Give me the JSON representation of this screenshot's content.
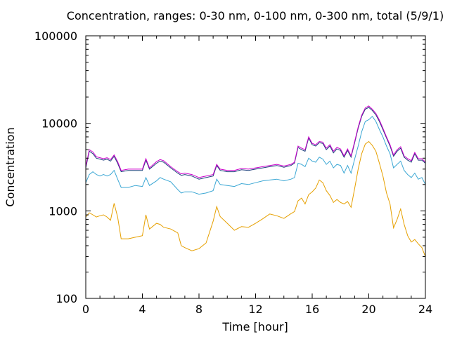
{
  "chart_data": {
    "type": "line",
    "title": "Concentration, ranges: 0-30 nm, 0-100 nm, 0-300 nm, total (5/9/1)",
    "xlabel": "Time [hour]",
    "ylabel": "Concentration",
    "xlim": [
      0,
      24
    ],
    "ylim": [
      100,
      100000
    ],
    "yscale": "log",
    "grid": false,
    "x_ticks": [
      0,
      4,
      8,
      12,
      16,
      20,
      24
    ],
    "x_tick_labels": [
      "0",
      "4",
      "8",
      "12",
      "16",
      "20",
      "24"
    ],
    "y_ticks": [
      100,
      1000,
      10000,
      100000
    ],
    "y_tick_labels": [
      "100",
      "1000",
      "10000",
      "100000"
    ],
    "x": [
      0,
      0.25,
      0.5,
      0.75,
      1,
      1.25,
      1.5,
      1.75,
      2,
      2.25,
      2.5,
      3,
      3.5,
      4,
      4.25,
      4.5,
      5,
      5.25,
      5.5,
      6,
      6.5,
      6.75,
      7,
      7.5,
      8,
      8.5,
      9,
      9.25,
      9.5,
      10,
      10.5,
      11,
      11.5,
      12,
      12.5,
      13,
      13.5,
      14,
      14.5,
      14.75,
      15,
      15.25,
      15.5,
      15.75,
      16,
      16.25,
      16.5,
      16.75,
      17,
      17.25,
      17.5,
      17.75,
      18,
      18.25,
      18.5,
      18.75,
      19,
      19.25,
      19.5,
      19.75,
      20,
      20.25,
      20.5,
      20.75,
      21,
      21.25,
      21.5,
      21.75,
      22,
      22.25,
      22.5,
      22.75,
      23,
      23.25,
      23.5,
      23.75,
      24
    ],
    "series": [
      {
        "color": "#e6a000",
        "values": [
          850,
          950,
          900,
          850,
          880,
          900,
          850,
          780,
          1220,
          850,
          480,
          480,
          500,
          520,
          900,
          620,
          720,
          700,
          650,
          620,
          560,
          400,
          380,
          350,
          370,
          430,
          760,
          1120,
          860,
          720,
          600,
          660,
          650,
          720,
          810,
          920,
          880,
          820,
          930,
          980,
          1300,
          1400,
          1200,
          1530,
          1650,
          1820,
          2250,
          2100,
          1700,
          1500,
          1250,
          1350,
          1250,
          1200,
          1280,
          1100,
          1800,
          3000,
          4500,
          5800,
          6200,
          5600,
          4800,
          3500,
          2500,
          1600,
          1200,
          640,
          800,
          1050,
          700,
          520,
          440,
          470,
          420,
          380,
          300
        ]
      },
      {
        "color": "#3ba7d4",
        "values": [
          2100,
          2600,
          2800,
          2600,
          2500,
          2600,
          2500,
          2600,
          2900,
          2300,
          1850,
          1850,
          1950,
          1900,
          2400,
          1950,
          2200,
          2400,
          2300,
          2150,
          1750,
          1600,
          1650,
          1650,
          1550,
          1600,
          1700,
          2300,
          2000,
          1950,
          1900,
          2050,
          2000,
          2100,
          2200,
          2250,
          2300,
          2200,
          2300,
          2400,
          3500,
          3400,
          3200,
          4000,
          3700,
          3600,
          4100,
          3900,
          3400,
          3700,
          3100,
          3400,
          3300,
          2700,
          3300,
          2700,
          3900,
          5500,
          8000,
          10500,
          11000,
          12000,
          10500,
          8500,
          7000,
          5500,
          4500,
          3100,
          3400,
          3700,
          2900,
          2600,
          2400,
          2700,
          2300,
          2400,
          2000
        ]
      },
      {
        "color": "#1c3e7c",
        "values": [
          3100,
          4800,
          4500,
          4000,
          3900,
          3800,
          3900,
          3700,
          4200,
          3500,
          2800,
          2900,
          2900,
          2900,
          3800,
          3000,
          3500,
          3700,
          3600,
          3100,
          2700,
          2550,
          2600,
          2500,
          2300,
          2400,
          2500,
          3300,
          2900,
          2800,
          2800,
          2950,
          2900,
          3000,
          3100,
          3200,
          3300,
          3150,
          3300,
          3500,
          5300,
          5000,
          4800,
          6800,
          5700,
          5500,
          6000,
          5900,
          5000,
          5500,
          4600,
          5100,
          4900,
          4100,
          4900,
          4100,
          6000,
          8800,
          12000,
          14500,
          15200,
          14000,
          12500,
          10500,
          8500,
          6800,
          5500,
          4200,
          4800,
          5200,
          4100,
          3800,
          3600,
          4500,
          3800,
          3800,
          3500
        ]
      },
      {
        "color": "#cc00cc",
        "values": [
          3200,
          5000,
          4700,
          4150,
          4050,
          3950,
          4050,
          3850,
          4350,
          3650,
          2900,
          3000,
          3000,
          3000,
          3950,
          3100,
          3650,
          3850,
          3750,
          3200,
          2800,
          2650,
          2700,
          2600,
          2400,
          2500,
          2600,
          3400,
          3000,
          2900,
          2900,
          3050,
          3000,
          3100,
          3200,
          3300,
          3400,
          3250,
          3400,
          3600,
          5500,
          5200,
          5000,
          7000,
          5900,
          5700,
          6200,
          6100,
          5200,
          5700,
          4800,
          5300,
          5100,
          4250,
          5100,
          4250,
          6200,
          9100,
          12400,
          15000,
          15800,
          14500,
          13000,
          10900,
          8800,
          7000,
          5700,
          4350,
          5000,
          5400,
          4250,
          3950,
          3750,
          4650,
          3950,
          3950,
          3600
        ]
      }
    ]
  }
}
